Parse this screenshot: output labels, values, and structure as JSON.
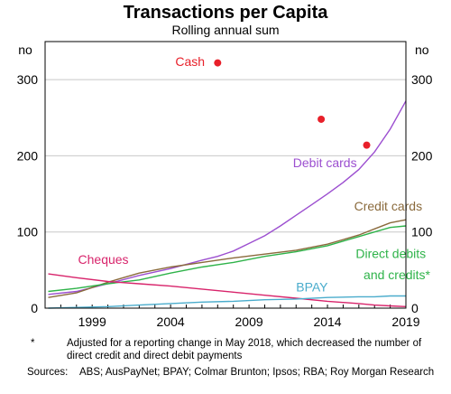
{
  "chart_data": {
    "type": "line",
    "title": "Transactions per Capita",
    "subtitle": "Rolling annual sum",
    "y_unit_left": "no",
    "y_unit_right": "no",
    "xlim": [
      1996,
      2019
    ],
    "ylim": [
      0,
      350
    ],
    "x_ticks": [
      "1999",
      "2004",
      "2009",
      "2014",
      "2019"
    ],
    "y_ticks": [
      "0",
      "100",
      "200",
      "300"
    ],
    "grid": "horizontal",
    "colors": {
      "debit": "#9c4fd0",
      "credit": "#8a6a3c",
      "direct": "#2fb34a",
      "cheques": "#d8246b",
      "bpay": "#4aaccc",
      "cash": "#e8202a"
    },
    "series": [
      {
        "name": "Debit cards",
        "color_key": "debit",
        "label_pos": [
          2011.8,
          185
        ],
        "x": [
          1996.2,
          1998,
          2000,
          2002,
          2004,
          2006,
          2007,
          2008,
          2009,
          2010,
          2011,
          2012,
          2013,
          2014,
          2015,
          2016,
          2017,
          2018,
          2019
        ],
        "values": [
          18,
          22,
          32,
          43,
          52,
          63,
          68,
          75,
          85,
          95,
          108,
          122,
          136,
          150,
          165,
          182,
          205,
          235,
          272
        ]
      },
      {
        "name": "Credit cards",
        "color_key": "credit",
        "label_pos": [
          2015.7,
          128
        ],
        "x": [
          1996.2,
          1998,
          2000,
          2002,
          2004,
          2006,
          2008,
          2010,
          2012,
          2014,
          2016,
          2017,
          2018,
          2019
        ],
        "values": [
          14,
          20,
          34,
          46,
          54,
          60,
          66,
          71,
          76,
          84,
          96,
          104,
          112,
          116
        ]
      },
      {
        "name": "Direct debits",
        "name2": "and credits*",
        "color_key": "direct",
        "label_pos": [
          2015.8,
          66
        ],
        "label2_pos": [
          2016.3,
          38
        ],
        "x": [
          1996.2,
          1998,
          2000,
          2002,
          2004,
          2006,
          2008,
          2010,
          2012,
          2014,
          2016,
          2017,
          2018,
          2019
        ],
        "values": [
          22,
          26,
          32,
          37,
          46,
          54,
          60,
          68,
          74,
          82,
          94,
          100,
          106,
          108
        ]
      },
      {
        "name": "Cheques",
        "color_key": "cheques",
        "label_pos": [
          1998.1,
          58
        ],
        "x": [
          1996.2,
          1998,
          2000,
          2002,
          2004,
          2006,
          2008,
          2010,
          2012,
          2014,
          2016,
          2017,
          2018,
          2019
        ],
        "values": [
          45,
          40,
          35,
          32,
          29,
          25,
          21,
          17,
          13,
          9,
          6,
          4,
          3,
          2
        ]
      },
      {
        "name": "BPAY",
        "color_key": "bpay",
        "label_pos": [
          2012,
          22
        ],
        "x": [
          1996.2,
          1998,
          2000,
          2002,
          2004,
          2006,
          2008,
          2010,
          2012,
          2014,
          2016,
          2017,
          2018,
          2019
        ],
        "values": [
          0,
          1,
          2,
          4,
          6,
          8,
          9,
          11,
          12,
          14,
          15,
          15,
          16,
          16
        ]
      }
    ],
    "points": {
      "name": "Cash",
      "color_key": "cash",
      "label_pos": [
        2004.3,
        318
      ],
      "x": [
        2007,
        2013.6,
        2016.5
      ],
      "values": [
        322,
        248,
        214
      ]
    }
  },
  "footnote": {
    "marker": "*",
    "text": "Adjusted for a reporting change in May 2018, which decreased the number of direct credit and direct debit payments"
  },
  "sources": {
    "label": "Sources:",
    "text": "ABS; AusPayNet; BPAY; Colmar Brunton; Ipsos; RBA; Roy Morgan Research"
  }
}
